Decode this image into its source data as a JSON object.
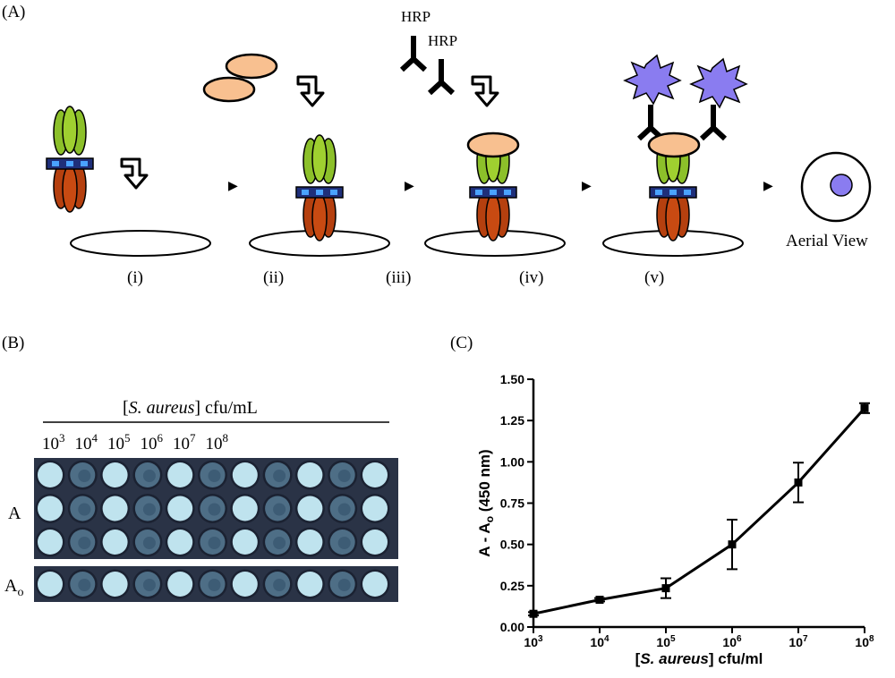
{
  "panel_a": {
    "label": "(A)",
    "hrp_label_1": "HRP",
    "hrp_label_2": "HRP",
    "aerial_label": "Aerial View",
    "steps": [
      "(i)",
      "(ii)",
      "(iii)",
      "(iv)",
      "(v)"
    ]
  },
  "panel_b": {
    "label": "(B)",
    "header_pre": "[",
    "header_italic": "S. aureus",
    "header_post": "] cfu/mL",
    "concentrations": [
      {
        "base": "10",
        "exp": "3"
      },
      {
        "base": "10",
        "exp": "4"
      },
      {
        "base": "10",
        "exp": "5"
      },
      {
        "base": "10",
        "exp": "6"
      },
      {
        "base": "10",
        "exp": "7"
      },
      {
        "base": "10",
        "exp": "8"
      }
    ],
    "row_label_a": "A",
    "row_label_ao_base": "A",
    "row_label_ao_sub": "o",
    "colors": {
      "plate_bg": "#2a3346",
      "well_light": "#bfe3ee",
      "well_dark": "#4e6e86"
    }
  },
  "panel_c": {
    "label": "(C)"
  },
  "chart_data": {
    "type": "line",
    "title": "",
    "xlabel_pre": "[",
    "xlabel_italic": "S. aureus",
    "xlabel_post": "] cfu/ml",
    "ylabel_base": "A - A",
    "ylabel_sub": "o",
    "ylabel_post": " (450 nm)",
    "x_scale": "log10",
    "xlim": [
      1000,
      100000000
    ],
    "ylim": [
      0,
      1.5
    ],
    "x_tick_labels": [
      {
        "base": "10",
        "exp": "3"
      },
      {
        "base": "10",
        "exp": "4"
      },
      {
        "base": "10",
        "exp": "5"
      },
      {
        "base": "10",
        "exp": "6"
      },
      {
        "base": "10",
        "exp": "7"
      },
      {
        "base": "10",
        "exp": "8"
      }
    ],
    "y_tick_labels": [
      "0.00",
      "0.25",
      "0.50",
      "0.75",
      "1.00",
      "1.25",
      "1.50"
    ],
    "grid": false,
    "series": [
      {
        "x": [
          1000,
          10000,
          100000,
          1000000,
          10000000,
          100000000
        ],
        "y": [
          0.08,
          0.165,
          0.235,
          0.5,
          0.875,
          1.325
        ],
        "err": [
          0.01,
          0.01,
          0.06,
          0.15,
          0.12,
          0.03
        ],
        "color": "#000000"
      }
    ]
  }
}
